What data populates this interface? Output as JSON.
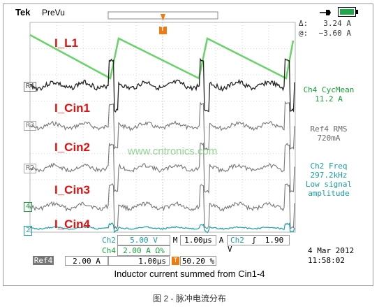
{
  "header": {
    "brand": "Tek",
    "mode": "PreVu"
  },
  "cursor": {
    "delta_label": "Δ:",
    "at_label": "@:",
    "delta_value": "3.24 A",
    "at_value": "−3.60 A"
  },
  "markers": {
    "ref4": "R4",
    "ref3": "R3",
    "ref2": "R2",
    "ch4": "4",
    "ch2": "2",
    "trigger": "T"
  },
  "waveform_labels": [
    "I_L1",
    "I_Cin1",
    "I_Cin2",
    "I_Cin3",
    "I_Cin4"
  ],
  "measurements": {
    "ch4": {
      "title": "Ch4 CycMean",
      "value": "11.2 A"
    },
    "ref4": {
      "title": "Ref4 RMS",
      "value": "720mA"
    },
    "ch2": {
      "title": "Ch2 Freq",
      "value": "297.2kHz",
      "note1": "Low signal",
      "note2": "amplitude"
    }
  },
  "watermark": "www.cntronics.com",
  "settings": {
    "ch2_label": "Ch2",
    "ch2_scale": "5.00 V",
    "ch4_label": "Ch4",
    "ch4_scale": "2.00 A Ω%",
    "m_label": "M",
    "timebase": "1.00µs",
    "trig_mode": "A",
    "trig_src": "Ch2",
    "trig_slope": "ʃ",
    "trig_level": "1.90 V",
    "ref4_label": "Ref4",
    "ref4_scale": "2.00 A",
    "ref4_time": "1.00µs",
    "trig_pos_label": "T",
    "trig_pos": "50.20 %"
  },
  "datetime": {
    "date": "4 Mar  2012",
    "time": "11:58:02"
  },
  "caption": "Inductor current summed from Cin1-4",
  "figure_caption": "图 2 - 脉冲电流分布",
  "colors": {
    "ch4": "#69d36a",
    "ch2": "#1a9fa5",
    "ref": "#6b6b6b",
    "label": "#e01010",
    "grid": "#b5b5b5"
  }
}
